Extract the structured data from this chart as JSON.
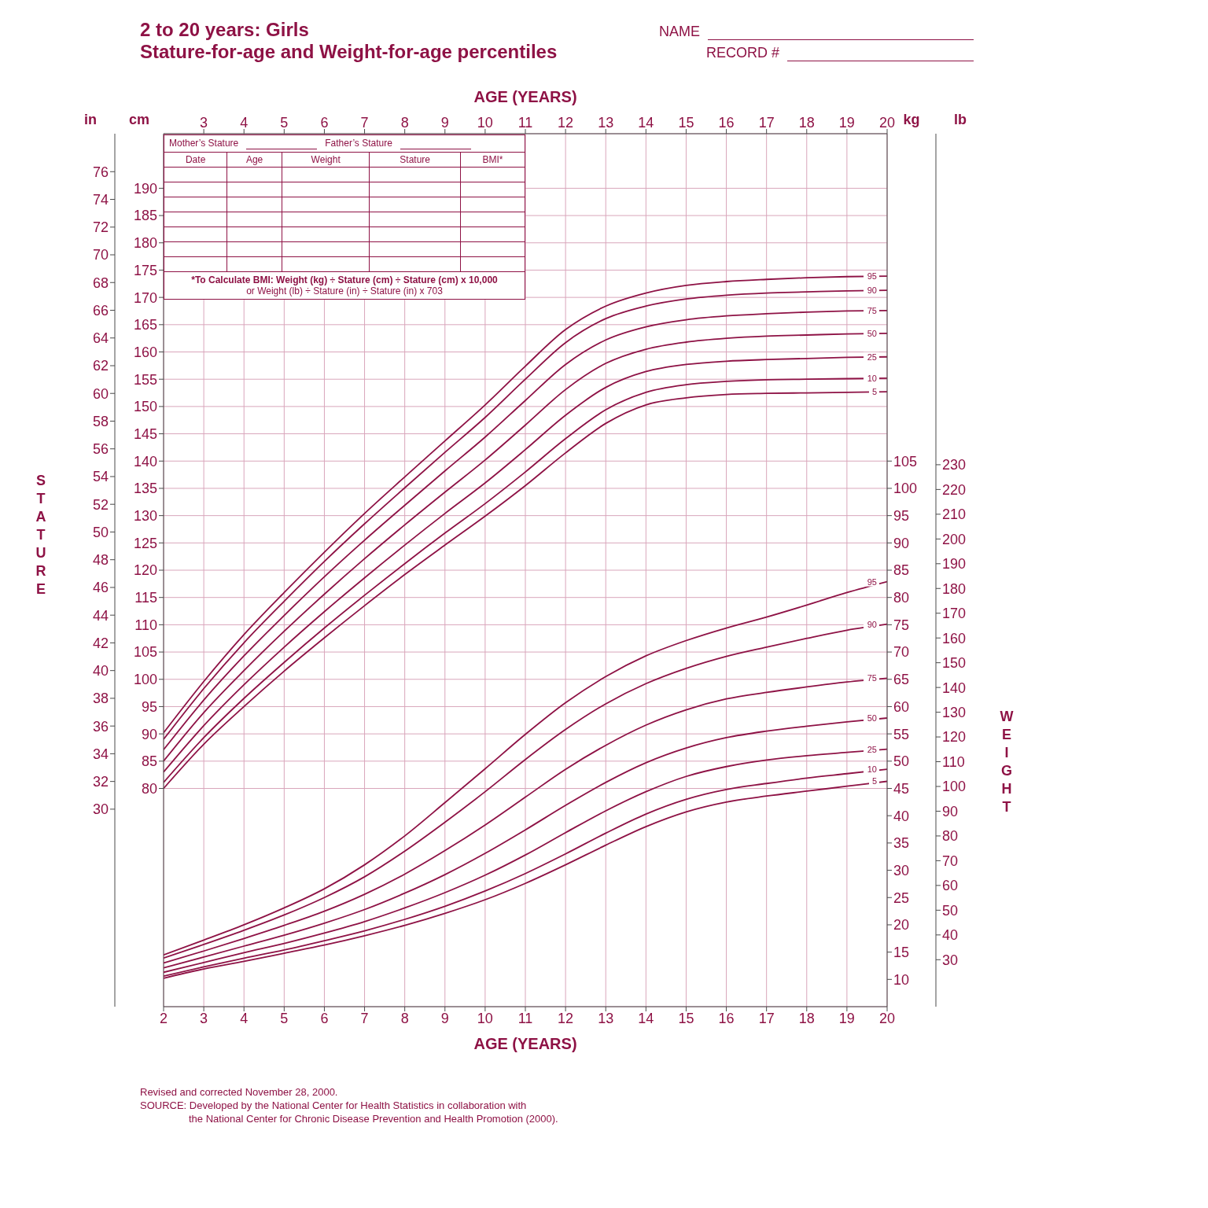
{
  "chart_data": [
    {
      "type": "line",
      "title": "2 to 20 years: Girls",
      "subtitle": "Stature-for-age and Weight-for-age percentiles",
      "xlabel": "AGE (YEARS)",
      "x2label": "AGE (YEARS)",
      "ylabel": "STATURE",
      "y2label": "cm",
      "x": [
        2,
        3,
        4,
        5,
        6,
        7,
        8,
        9,
        10,
        11,
        12,
        13,
        14,
        15,
        16,
        17,
        18,
        19,
        20
      ],
      "xlim": [
        2,
        20
      ],
      "xticks": [
        2,
        3,
        4,
        5,
        6,
        7,
        8,
        9,
        10,
        11,
        12,
        13,
        14,
        15,
        16,
        17,
        18,
        19,
        20
      ],
      "x2lim": [
        2,
        20
      ],
      "x2ticks": [
        3,
        4,
        5,
        6,
        7,
        8,
        9,
        10,
        11,
        12,
        13,
        14,
        15,
        16,
        17,
        18,
        19,
        20
      ],
      "y2lim": [
        40,
        200
      ],
      "y2ticks": [
        80,
        85,
        90,
        95,
        100,
        105,
        110,
        115,
        120,
        125,
        130,
        135,
        140,
        145,
        150,
        155,
        160,
        165,
        170,
        175,
        180,
        185,
        190
      ],
      "ylim": [
        15.75,
        78.74
      ],
      "yticks": [
        30,
        32,
        34,
        36,
        38,
        40,
        42,
        44,
        46,
        48,
        50,
        52,
        54,
        56,
        58,
        60,
        62,
        64,
        66,
        68,
        70,
        72,
        74,
        76
      ],
      "grid": true,
      "legend": false,
      "marker": "none",
      "line_style": "solid",
      "series": [
        {
          "name": "95",
          "color": "#8e1245",
          "axis": "y2",
          "values": [
            90.2,
            99.6,
            108.2,
            115.9,
            123.3,
            130.4,
            137.1,
            143.7,
            150.3,
            157.4,
            164.1,
            168.4,
            170.8,
            172.2,
            172.9,
            173.3,
            173.6,
            173.8,
            173.9
          ]
        },
        {
          "name": "90",
          "color": "#8e1245",
          "axis": "y2",
          "values": [
            89.0,
            98.3,
            106.7,
            114.3,
            121.6,
            128.5,
            135.1,
            141.6,
            148.0,
            155.0,
            161.7,
            166.1,
            168.4,
            169.7,
            170.4,
            170.8,
            171.0,
            171.2,
            171.3
          ]
        },
        {
          "name": "75",
          "color": "#8e1245",
          "axis": "y2",
          "values": [
            87.1,
            96.2,
            104.3,
            111.7,
            118.8,
            125.5,
            131.9,
            138.2,
            144.4,
            151.1,
            157.7,
            162.2,
            164.6,
            165.9,
            166.6,
            167.0,
            167.3,
            167.5,
            167.6
          ]
        },
        {
          "name": "50",
          "color": "#8e1245",
          "axis": "y2",
          "values": [
            85.0,
            93.9,
            101.6,
            108.8,
            115.6,
            122.1,
            128.3,
            134.3,
            140.2,
            146.6,
            153.1,
            157.9,
            160.5,
            161.8,
            162.5,
            162.9,
            163.1,
            163.3,
            163.4
          ]
        },
        {
          "name": "25",
          "color": "#8e1245",
          "axis": "y2",
          "values": [
            83.0,
            91.5,
            99.0,
            105.9,
            112.4,
            118.6,
            124.6,
            130.4,
            136.0,
            142.1,
            148.4,
            153.5,
            156.4,
            157.7,
            158.3,
            158.6,
            158.8,
            159.0,
            159.1
          ]
        },
        {
          "name": "10",
          "color": "#8e1245",
          "axis": "y2",
          "values": [
            81.1,
            89.3,
            96.5,
            103.1,
            109.4,
            115.4,
            121.2,
            126.8,
            132.2,
            138.0,
            144.1,
            149.4,
            152.6,
            154.0,
            154.6,
            154.9,
            155.0,
            155.1,
            155.2
          ]
        },
        {
          "name": "5",
          "color": "#8e1245",
          "axis": "y2",
          "values": [
            80.0,
            88.1,
            95.0,
            101.5,
            107.6,
            113.5,
            119.2,
            124.6,
            129.9,
            135.5,
            141.5,
            146.9,
            150.3,
            151.6,
            152.2,
            152.4,
            152.5,
            152.6,
            152.7
          ]
        }
      ],
      "annotations": [
        "NAME",
        "RECORD #",
        "Mother’s Stature",
        "Father’s Stature",
        "Date",
        "Age",
        "Weight",
        "Stature",
        "BMI*",
        "*To Calculate BMI: Weight (kg) ÷ Stature (cm) ÷ Stature (cm) x 10,000",
        "or Weight (lb) ÷ Stature (in) ÷ Stature (in) x 703",
        "Revised and corrected November 28, 2000.",
        "SOURCE: Developed by the National Center for Health Statistics in collaboration with",
        "the National Center for Chronic Disease Prevention and Health Promotion (2000).",
        "in"
      ]
    },
    {
      "type": "line",
      "ylabel": "WEIGHT",
      "y2label": "kg",
      "tick_labels": "y",
      "x": [
        2,
        3,
        4,
        5,
        6,
        7,
        8,
        9,
        10,
        11,
        12,
        13,
        14,
        15,
        16,
        17,
        18,
        19,
        20
      ],
      "xlim": [
        2,
        20
      ],
      "y2lim": [
        5,
        165
      ],
      "y2ticks": [
        10,
        15,
        20,
        25,
        30,
        35,
        40,
        45,
        50,
        55,
        60,
        65,
        70,
        75,
        80,
        85,
        90,
        95,
        100,
        105
      ],
      "ylim": [
        11.02,
        363.76
      ],
      "yticks": [
        30,
        40,
        50,
        60,
        70,
        80,
        90,
        100,
        110,
        120,
        130,
        140,
        150,
        160,
        170,
        180,
        190,
        200,
        210,
        220,
        230
      ],
      "marker": "none",
      "line_style": "solid",
      "series": [
        {
          "name": "95",
          "color": "#8e1245",
          "axis": "y2",
          "values": [
            14.5,
            17.2,
            20.0,
            23.1,
            26.6,
            31.0,
            36.3,
            42.4,
            48.6,
            54.9,
            60.7,
            65.5,
            69.3,
            72.1,
            74.4,
            76.4,
            78.6,
            80.9,
            82.9
          ]
        },
        {
          "name": "90",
          "color": "#8e1245",
          "axis": "y2",
          "values": [
            13.9,
            16.4,
            19.0,
            21.8,
            25.0,
            28.8,
            33.5,
            38.8,
            44.4,
            50.3,
            55.8,
            60.5,
            64.2,
            67.0,
            69.2,
            70.9,
            72.5,
            74.0,
            75.1
          ]
        },
        {
          "name": "75",
          "color": "#8e1245",
          "axis": "y2",
          "values": [
            13.0,
            15.2,
            17.5,
            19.9,
            22.5,
            25.6,
            29.3,
            33.6,
            38.3,
            43.4,
            48.5,
            52.9,
            56.6,
            59.4,
            61.4,
            62.6,
            63.6,
            64.5,
            65.2
          ]
        },
        {
          "name": "50",
          "color": "#8e1245",
          "axis": "y2",
          "values": [
            12.1,
            14.1,
            16.1,
            18.1,
            20.3,
            22.8,
            25.8,
            29.2,
            33.1,
            37.4,
            41.9,
            46.1,
            49.7,
            52.4,
            54.3,
            55.5,
            56.4,
            57.2,
            57.9
          ]
        },
        {
          "name": "25",
          "color": "#8e1245",
          "axis": "y2",
          "values": [
            11.3,
            13.1,
            14.9,
            16.6,
            18.5,
            20.6,
            23.1,
            25.9,
            29.1,
            32.8,
            36.9,
            40.9,
            44.4,
            47.2,
            49.0,
            50.2,
            51.0,
            51.6,
            52.2
          ]
        },
        {
          "name": "10",
          "color": "#8e1245",
          "axis": "y2",
          "values": [
            10.6,
            12.3,
            13.9,
            15.4,
            17.1,
            18.9,
            21.0,
            23.4,
            26.2,
            29.4,
            33.0,
            36.8,
            40.3,
            43.0,
            44.8,
            45.9,
            46.9,
            47.7,
            48.5
          ]
        },
        {
          "name": "5",
          "color": "#8e1245",
          "axis": "y2",
          "values": [
            10.2,
            11.9,
            13.3,
            14.8,
            16.3,
            18.0,
            19.9,
            22.1,
            24.6,
            27.6,
            31.0,
            34.6,
            38.0,
            40.7,
            42.5,
            43.6,
            44.5,
            45.4,
            46.3
          ]
        }
      ],
      "annotations": [
        "lb"
      ]
    }
  ]
}
